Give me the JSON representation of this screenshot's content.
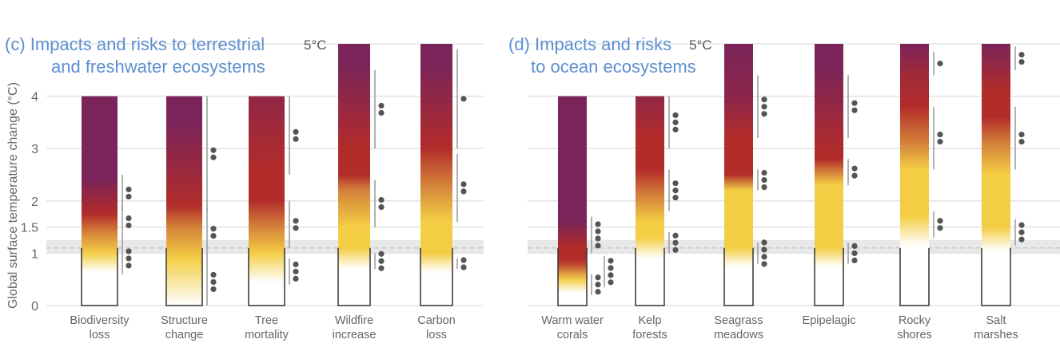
{
  "chart_data": {
    "type": "burning-embers",
    "ylabel": "Global surface temperature change (°C)",
    "yticks": [
      "0",
      "1",
      "1.5",
      "2",
      "3",
      "4"
    ],
    "ytick_values": [
      0,
      1,
      1.5,
      2,
      3,
      4
    ],
    "top_label": "5°C",
    "ylim": [
      0,
      5
    ],
    "recent_warming_band": [
      1.0,
      1.25
    ],
    "recent_warming_line": 1.1,
    "risk_colors": {
      "undetectable": "#ffffff",
      "moderate": "#f3ce45",
      "high": "#b22c2a",
      "very_high": "#7b2459",
      "transition": "#d4823a"
    },
    "dot_color": "#555555",
    "panels": [
      {
        "title_line1": "(c) Impacts and risks to terrestrial",
        "title_line2": "and freshwater ecosystems",
        "embers": [
          {
            "label1": "Biodiversity",
            "label2": "loss",
            "top": 4,
            "stops": [
              [
                0.65,
                0
              ],
              [
                1.0,
                1
              ],
              [
                1.4,
                1.5
              ],
              [
                1.75,
                2
              ],
              [
                2.4,
                3
              ]
            ],
            "transitions": [
              {
                "range": [
                  0.6,
                  1.2
                ],
                "dots": 3
              },
              {
                "range": [
                  1.2,
                  2.0
                ],
                "dots": 2
              },
              {
                "range": [
                  1.8,
                  2.5
                ],
                "dots": 2
              }
            ]
          },
          {
            "label1": "Structure",
            "label2": "change",
            "top": 4,
            "stops": [
              [
                0.0,
                0
              ],
              [
                0.9,
                1
              ],
              [
                1.5,
                1.5
              ],
              [
                1.9,
                2
              ],
              [
                3.5,
                3
              ]
            ],
            "transitions": [
              {
                "range": [
                  0.0,
                  0.9
                ],
                "dots": 3
              },
              {
                "range": [
                  0.9,
                  1.9
                ],
                "dots": 2
              },
              {
                "range": [
                  1.8,
                  4.0
                ],
                "dots": 2
              }
            ]
          },
          {
            "label1": "Tree",
            "label2": "mortality",
            "top": 4,
            "stops": [
              [
                0.45,
                0
              ],
              [
                1.0,
                1
              ],
              [
                1.5,
                1.5
              ],
              [
                2.0,
                2
              ],
              [
                2.6,
                2
              ],
              [
                4.0,
                2.6
              ]
            ],
            "transitions": [
              {
                "range": [
                  0.4,
                  0.9
                ],
                "dots": 3
              },
              {
                "range": [
                  1.1,
                  2.0
                ],
                "dots": 2
              },
              {
                "range": [
                  2.5,
                  4.0
                ],
                "dots": 2
              }
            ]
          },
          {
            "label1": "Wildfire",
            "label2": "increase",
            "top": 5,
            "stops": [
              [
                0.7,
                0
              ],
              [
                1.1,
                1
              ],
              [
                1.5,
                1
              ],
              [
                2.2,
                1.5
              ],
              [
                2.5,
                2
              ],
              [
                3.0,
                2
              ],
              [
                4.6,
                3
              ]
            ],
            "transitions": [
              {
                "range": [
                  0.7,
                  1.0
                ],
                "dots": 3
              },
              {
                "range": [
                  1.5,
                  2.4
                ],
                "dots": 2
              },
              {
                "range": [
                  3.0,
                  4.5
                ],
                "dots": 2
              }
            ]
          },
          {
            "label1": "Carbon",
            "label2": "loss",
            "top": 5,
            "stops": [
              [
                0.65,
                0
              ],
              [
                1.0,
                1
              ],
              [
                1.6,
                1
              ],
              [
                2.3,
                1.5
              ],
              [
                3.0,
                2
              ],
              [
                4.6,
                3
              ]
            ],
            "transitions": [
              {
                "range": [
                  0.7,
                  0.9
                ],
                "dots": 2
              },
              {
                "range": [
                  1.6,
                  2.9
                ],
                "dots": 2
              },
              {
                "range": [
                  3.0,
                  4.9
                ],
                "dots": 1
              }
            ]
          }
        ]
      },
      {
        "title_line1": "(d) Impacts and risks",
        "title_line2": "to ocean ecosystems",
        "embers": [
          {
            "label1": "Warm water",
            "label2": "corals",
            "top": 4,
            "stops": [
              [
                0.25,
                0
              ],
              [
                0.5,
                1
              ],
              [
                0.7,
                1.6
              ],
              [
                0.85,
                2
              ],
              [
                1.1,
                2
              ],
              [
                1.6,
                3
              ]
            ],
            "transitions": [
              {
                "range": [
                  0.2,
                  0.6
                ],
                "dots": 3
              },
              {
                "range": [
                  0.35,
                  0.95
                ],
                "dots": 4,
                "offset": true
              },
              {
                "range": [
                  1.0,
                  1.7
                ],
                "dots": 4
              }
            ]
          },
          {
            "label1": "Kelp",
            "label2": "forests",
            "top": 4,
            "stops": [
              [
                0.9,
                0
              ],
              [
                1.3,
                1
              ],
              [
                1.6,
                1
              ],
              [
                2.1,
                1.5
              ],
              [
                2.6,
                2
              ],
              [
                3.2,
                2
              ],
              [
                4.0,
                2.6
              ]
            ],
            "transitions": [
              {
                "range": [
                  1.0,
                  1.4
                ],
                "dots": 3
              },
              {
                "range": [
                  1.8,
                  2.6
                ],
                "dots": 3
              },
              {
                "range": [
                  3.0,
                  4.0
                ],
                "dots": 3
              }
            ]
          },
          {
            "label1": "Seagrass",
            "label2": "meadows",
            "top": 5,
            "stops": [
              [
                0.75,
                0
              ],
              [
                1.1,
                1
              ],
              [
                2.2,
                1
              ],
              [
                2.5,
                2
              ],
              [
                3.2,
                2
              ],
              [
                4.0,
                2.7
              ],
              [
                5.0,
                3
              ]
            ],
            "transitions": [
              {
                "range": [
                  0.8,
                  1.2
                ],
                "dots": 4
              },
              {
                "range": [
                  2.2,
                  2.6
                ],
                "dots": 3
              },
              {
                "range": [
                  3.2,
                  4.4
                ],
                "dots": 3
              }
            ]
          },
          {
            "label1": "Epipelagic",
            "label2": "",
            "top": 5,
            "stops": [
              [
                0.75,
                0
              ],
              [
                1.1,
                1
              ],
              [
                2.3,
                1
              ],
              [
                2.6,
                1.6
              ],
              [
                2.8,
                2
              ],
              [
                3.3,
                2.2
              ],
              [
                4.5,
                3
              ]
            ],
            "transitions": [
              {
                "range": [
                  0.8,
                  1.2
                ],
                "dots": 3
              },
              {
                "range": [
                  2.3,
                  2.8
                ],
                "dots": 2
              },
              {
                "range": [
                  3.2,
                  4.4
                ],
                "dots": 2
              }
            ]
          },
          {
            "label1": "Rocky",
            "label2": "shores",
            "top": 5,
            "stops": [
              [
                1.15,
                0
              ],
              [
                1.7,
                1
              ],
              [
                2.6,
                1
              ],
              [
                3.1,
                1.5
              ],
              [
                3.8,
                2
              ],
              [
                4.4,
                2.3
              ],
              [
                5.0,
                3
              ]
            ],
            "transitions": [
              {
                "range": [
                  1.3,
                  1.8
                ],
                "dots": 2
              },
              {
                "range": [
                  2.6,
                  3.8
                ],
                "dots": 2
              },
              {
                "range": [
                  4.4,
                  4.85
                ],
                "dots": 1
              }
            ]
          },
          {
            "label1": "Salt",
            "label2": "marshes",
            "top": 5,
            "stops": [
              [
                1.05,
                0
              ],
              [
                1.5,
                1
              ],
              [
                2.5,
                1
              ],
              [
                3.1,
                1.5
              ],
              [
                3.6,
                2
              ],
              [
                4.1,
                2
              ],
              [
                5.0,
                3
              ]
            ],
            "transitions": [
              {
                "range": [
                  1.15,
                  1.65
                ],
                "dots": 3
              },
              {
                "range": [
                  2.6,
                  3.8
                ],
                "dots": 2
              },
              {
                "range": [
                  4.5,
                  4.95
                ],
                "dots": 2
              }
            ]
          }
        ]
      }
    ]
  }
}
